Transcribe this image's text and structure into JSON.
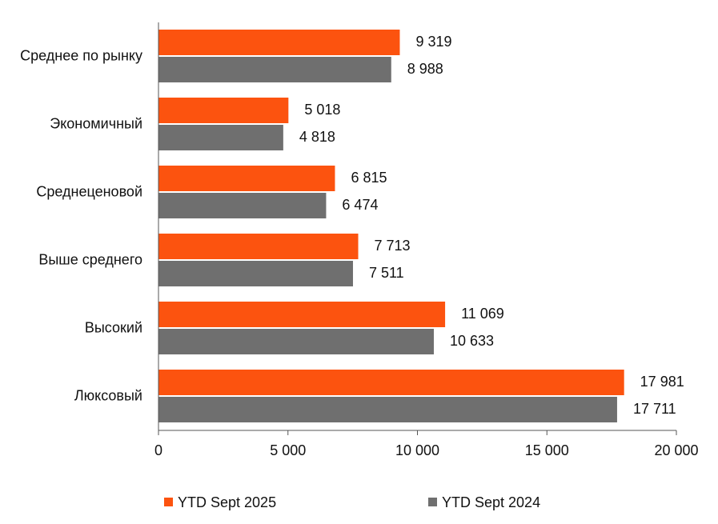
{
  "chart_data": {
    "type": "barh",
    "categories": [
      "Среднее по рынку",
      "Экономичный",
      "Среднеценовой",
      "Выше среднего",
      "Высокий",
      "Люксовый"
    ],
    "series": [
      {
        "name": "YTD Sept 2025",
        "color": "#fc530f",
        "values": [
          9319,
          5018,
          6815,
          7713,
          11069,
          17981
        ],
        "value_labels": [
          "9 319",
          "5 018",
          "6 815",
          "7 713",
          "11 069",
          "17 981"
        ]
      },
      {
        "name": "YTD Sept 2024",
        "color": "#6f6f6f",
        "values": [
          8988,
          4818,
          6474,
          7511,
          10633,
          17711
        ],
        "value_labels": [
          "8 988",
          "4 818",
          "6 474",
          "7 511",
          "10 633",
          "17 711"
        ]
      }
    ],
    "xlim": [
      0,
      20000
    ],
    "xticks": [
      0,
      {
        "value": 5000,
        "label": "5 000"
      },
      {
        "value": 10000,
        "label": "10 000"
      },
      {
        "value": 15000,
        "label": "15 000"
      },
      {
        "value": 20000,
        "label": "20 000"
      }
    ],
    "legend": "bottom"
  }
}
